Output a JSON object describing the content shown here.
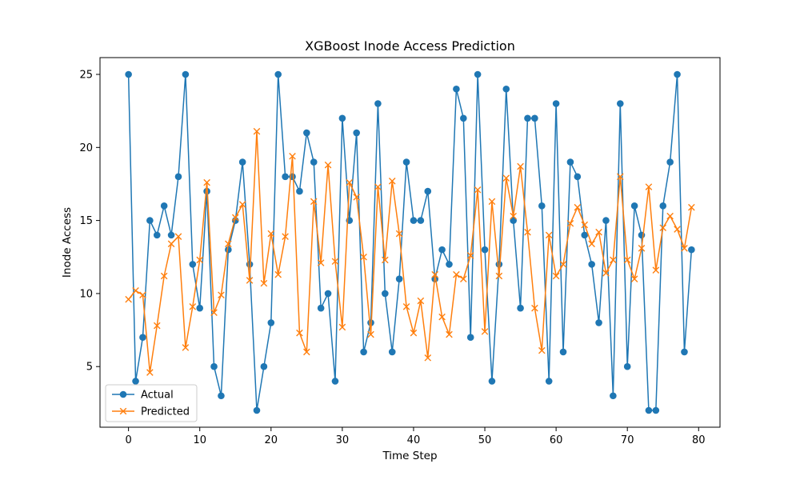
{
  "chart_data": {
    "type": "line",
    "title": "XGBoost Inode Access Prediction",
    "xlabel": "Time Step",
    "ylabel": "Inode Access",
    "xlim": [
      -4,
      83
    ],
    "ylim": [
      0.85,
      26.15
    ],
    "xticks": [
      0,
      10,
      20,
      30,
      40,
      50,
      60,
      70,
      80
    ],
    "yticks": [
      5,
      10,
      15,
      20,
      25
    ],
    "legend": "lower-left",
    "grid": false,
    "x": [
      0,
      1,
      2,
      3,
      4,
      5,
      6,
      7,
      8,
      9,
      10,
      11,
      12,
      13,
      14,
      15,
      16,
      17,
      18,
      19,
      20,
      21,
      22,
      23,
      24,
      25,
      26,
      27,
      28,
      29,
      30,
      31,
      32,
      33,
      34,
      35,
      36,
      37,
      38,
      39,
      40,
      41,
      42,
      43,
      44,
      45,
      46,
      47,
      48,
      49,
      50,
      51,
      52,
      53,
      54,
      55,
      56,
      57,
      58,
      59,
      60,
      61,
      62,
      63,
      64,
      65,
      66,
      67,
      68,
      69,
      70,
      71,
      72,
      73,
      74,
      75,
      76,
      77,
      78,
      79
    ],
    "series": [
      {
        "name": "Actual",
        "color": "#1f77b4",
        "marker": "circle",
        "values": [
          25,
          4,
          7,
          15,
          14,
          16,
          14,
          18,
          25,
          12,
          9,
          17,
          5,
          3,
          13,
          15,
          19,
          12,
          2,
          5,
          8,
          25,
          18,
          18,
          17,
          21,
          19,
          9,
          10,
          4,
          22,
          15,
          21,
          6,
          8,
          23,
          10,
          6,
          11,
          19,
          15,
          15,
          17,
          11,
          13,
          12,
          24,
          22,
          7,
          25,
          13,
          4,
          12,
          24,
          15,
          9,
          22,
          22,
          16,
          4,
          23,
          6,
          19,
          18,
          14,
          12,
          8,
          15,
          3,
          23,
          5,
          16,
          14,
          2,
          2,
          16,
          19,
          25,
          6,
          13
        ]
      },
      {
        "name": "Predicted",
        "color": "#ff7f0e",
        "marker": "x",
        "values": [
          9.6,
          10.2,
          9.9,
          4.6,
          7.8,
          11.2,
          13.4,
          13.9,
          6.3,
          9.1,
          12.3,
          17.6,
          8.7,
          9.9,
          13.4,
          15.2,
          16.1,
          10.9,
          21.1,
          10.7,
          14.1,
          11.3,
          13.9,
          19.4,
          7.3,
          6.0,
          16.3,
          12.1,
          18.8,
          12.2,
          7.7,
          17.6,
          16.6,
          12.5,
          7.2,
          17.3,
          12.3,
          17.7,
          14.1,
          9.1,
          7.3,
          9.5,
          5.6,
          11.3,
          8.4,
          7.2,
          11.3,
          11.0,
          12.6,
          17.1,
          7.4,
          16.3,
          11.2,
          17.9,
          15.3,
          18.7,
          14.2,
          9.0,
          6.1,
          14.0,
          11.2,
          12.0,
          14.8,
          15.9,
          14.7,
          13.4,
          14.2,
          11.4,
          12.3,
          18.0,
          12.3,
          11.0,
          13.1,
          17.3,
          11.6,
          14.5,
          15.3,
          14.4,
          13.1,
          15.9
        ]
      }
    ]
  }
}
